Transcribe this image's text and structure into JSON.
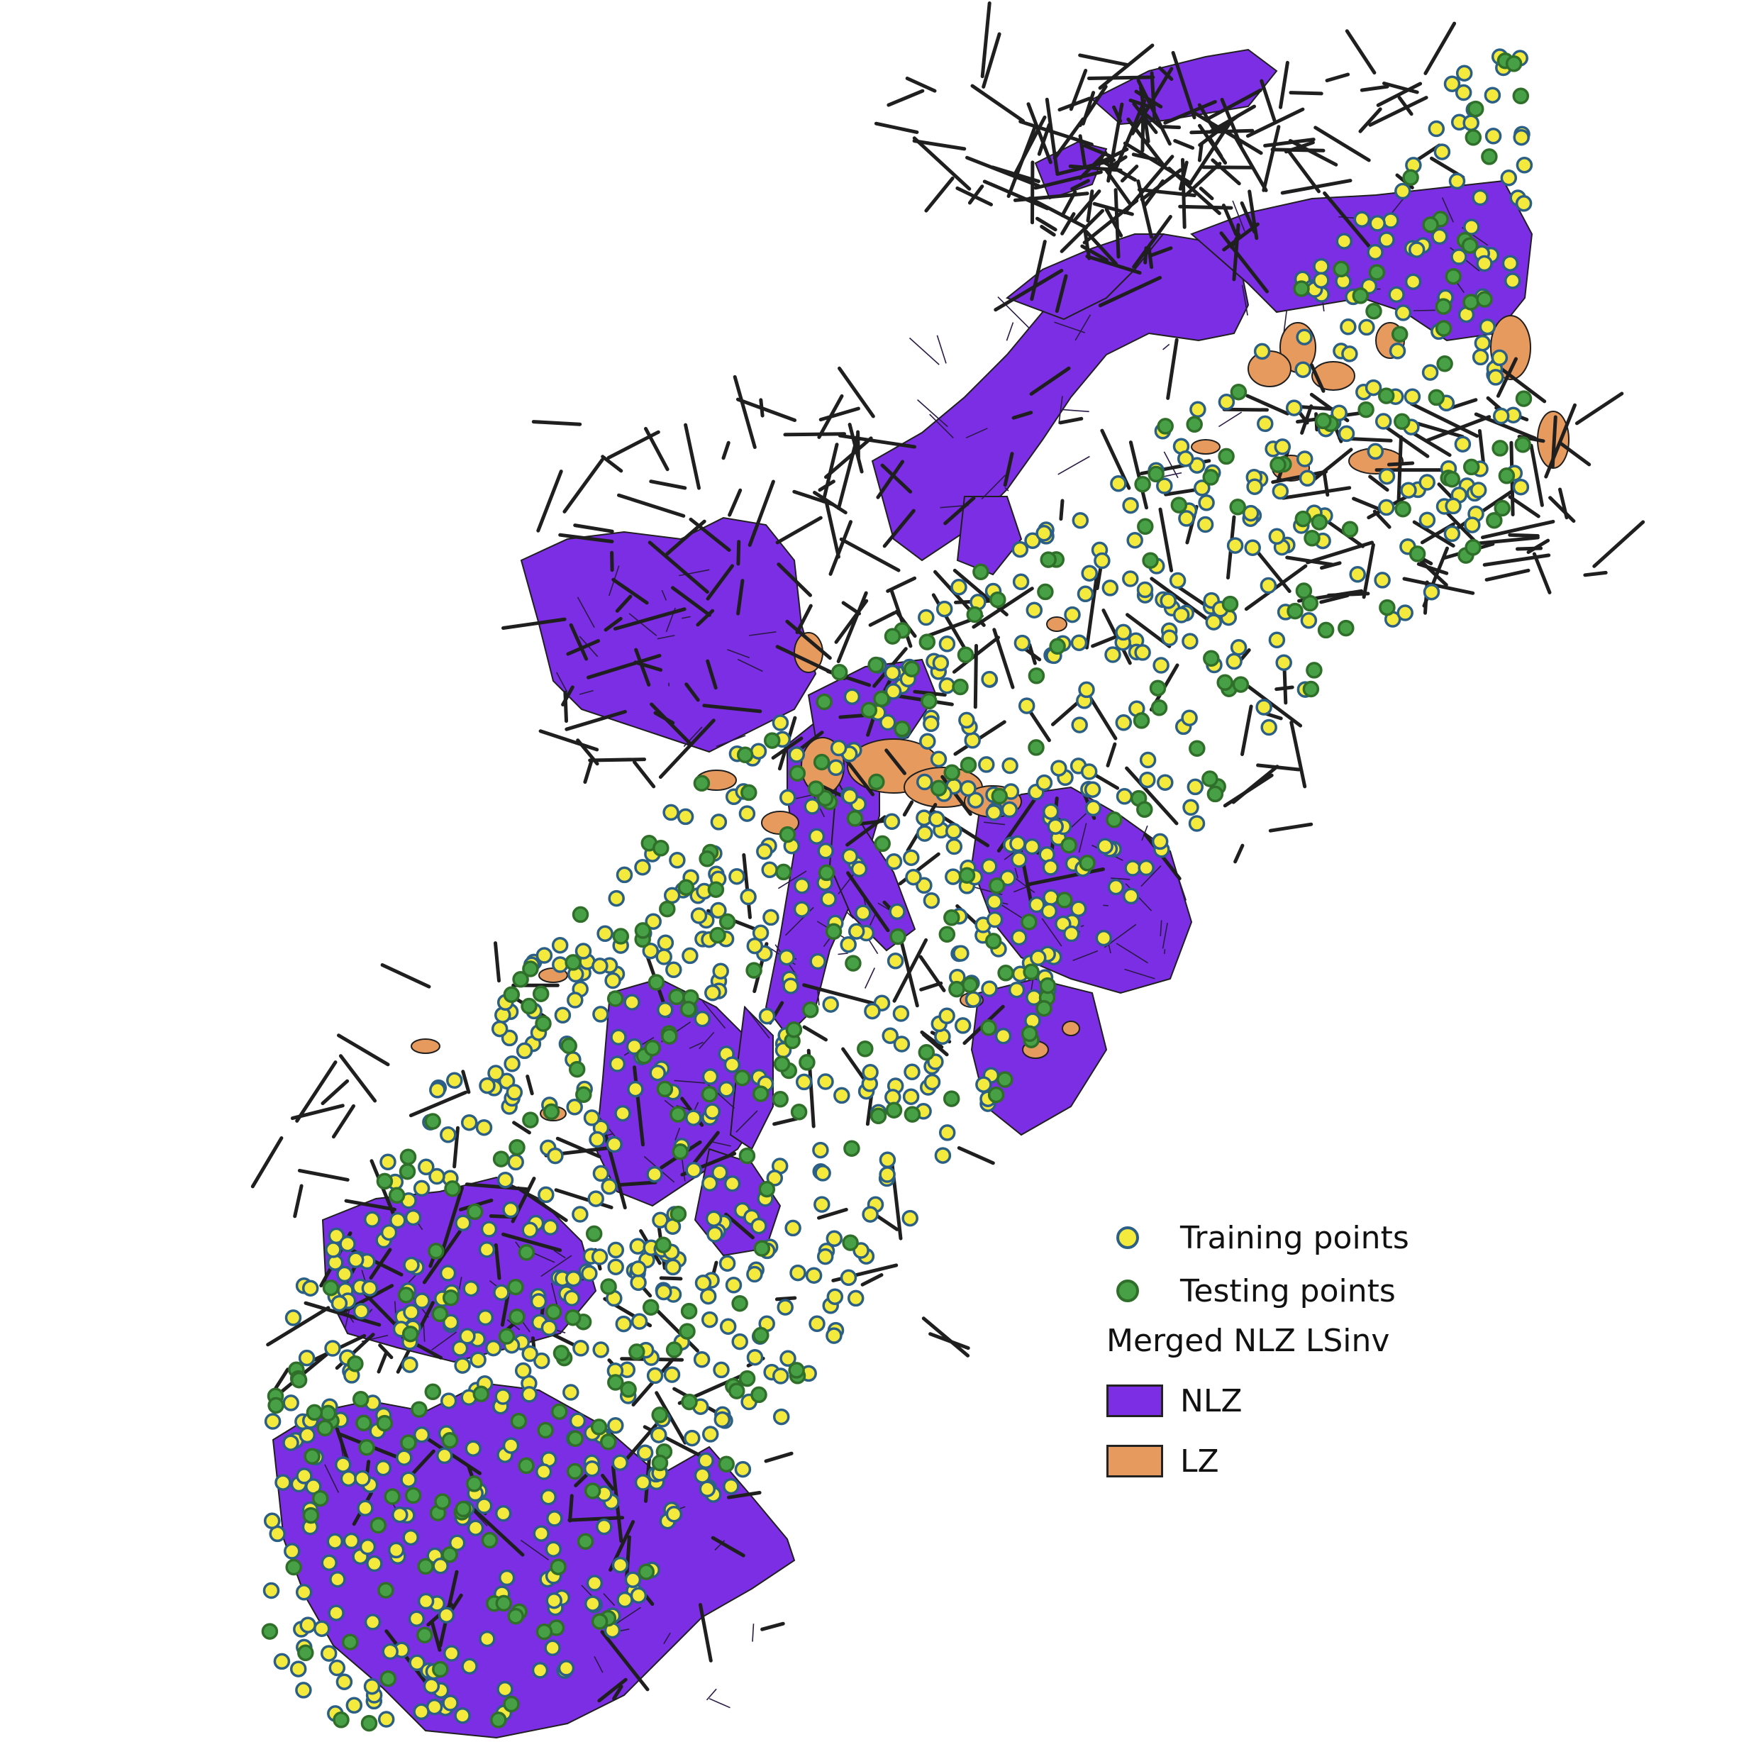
{
  "map": {
    "colors": {
      "nlz": "#7b2ee4",
      "lz": "#e79a5e",
      "boundary": "#1f1f1f",
      "training_fill": "#f4ea3d",
      "training_stroke": "#2b5f86",
      "testing_fill": "#47a046",
      "testing_stroke": "#2f6f2a",
      "background": "#ffffff"
    }
  },
  "legend": {
    "training_label": "Training points",
    "testing_label": "Testing points",
    "title": "Merged NLZ LSinv",
    "nlz_label": "NLZ",
    "lz_label": "LZ"
  }
}
